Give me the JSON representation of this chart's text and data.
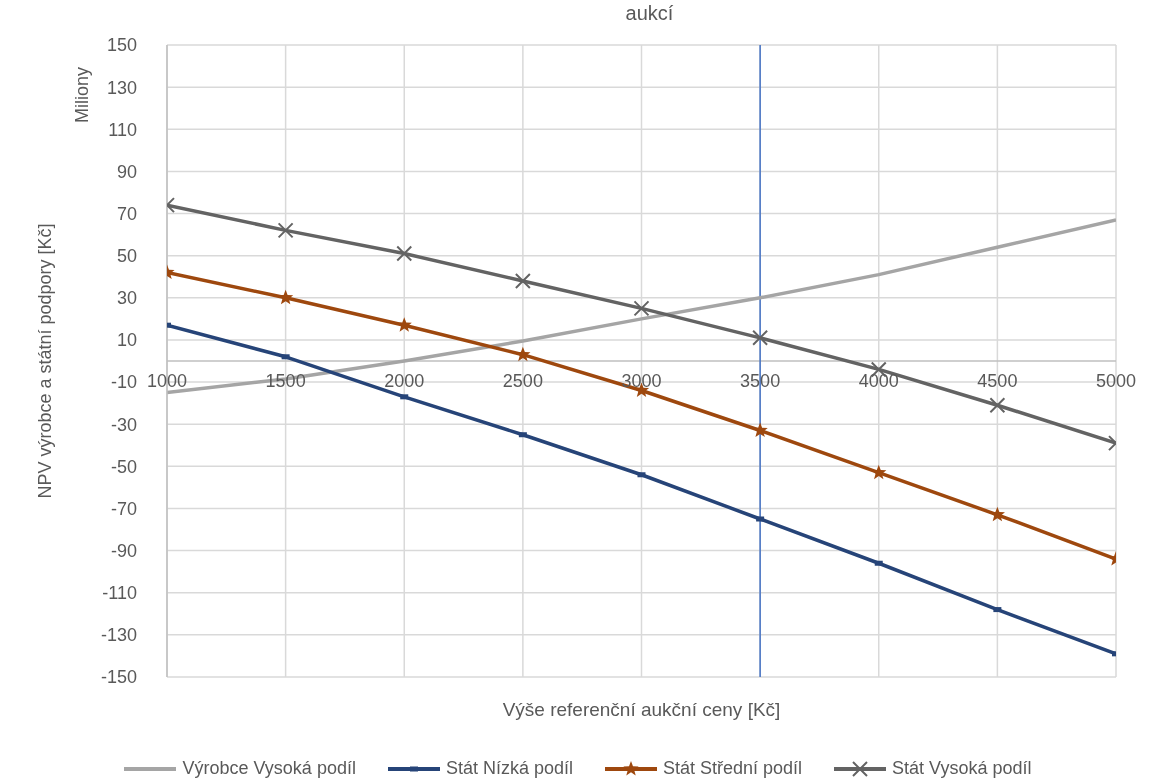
{
  "chart_data": {
    "type": "line",
    "title": "aukcí",
    "xlabel": "Výše referenční aukční ceny [Kč]",
    "ylabel": "NPV výrobce a státní podpory [Kč]",
    "annotations": [
      "Miliony"
    ],
    "x": [
      1000,
      1500,
      2000,
      2500,
      3000,
      3500,
      4000,
      4500,
      5000
    ],
    "series": [
      {
        "name": "Výrobce Vysoká podíl",
        "color": "#a5a5a5",
        "marker": "none",
        "values": [
          -15,
          -8.5,
          0,
          9.5,
          20,
          30,
          41,
          54,
          67
        ]
      },
      {
        "name": "Stát Nízká podíl",
        "color": "#264478",
        "marker": "square",
        "values": [
          17,
          2,
          -17,
          -35,
          -54,
          -75,
          -96,
          -118,
          -139
        ]
      },
      {
        "name": "Stát Střední podíl",
        "color": "#9e480e",
        "marker": "star",
        "values": [
          42,
          30,
          17,
          3,
          -14,
          -33,
          -53,
          -73,
          -94
        ]
      },
      {
        "name": "Stát Vysoká podíl",
        "color": "#636363",
        "marker": "cross",
        "values": [
          74,
          62,
          51,
          38,
          25,
          11,
          -4,
          -21,
          -39
        ]
      }
    ],
    "xlim": [
      1000,
      5000
    ],
    "xticks": [
      1000,
      1500,
      2000,
      2500,
      3000,
      3500,
      4000,
      4500,
      5000
    ],
    "ylim": [
      -150,
      150
    ],
    "yticks": [
      -150,
      -130,
      -110,
      -90,
      -70,
      -50,
      -30,
      -10,
      10,
      30,
      50,
      70,
      90,
      110,
      130,
      150
    ],
    "ref_lines": [
      {
        "axis": "x",
        "value": 3500,
        "color": "#4472c4"
      }
    ],
    "grid": true,
    "legend": "bottom"
  }
}
